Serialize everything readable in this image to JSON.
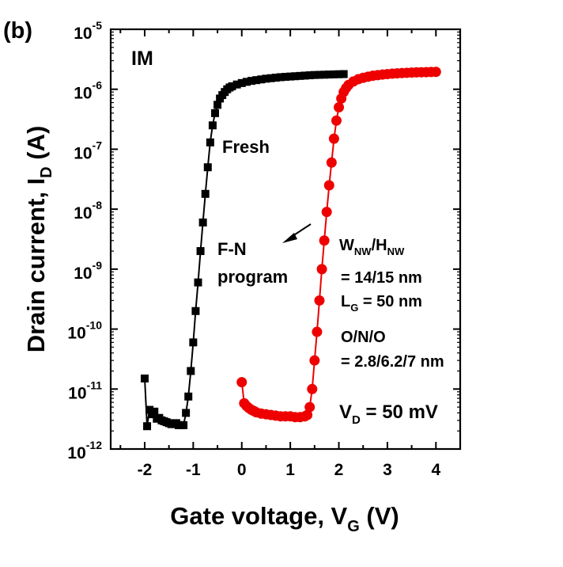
{
  "panel_label": "(b)",
  "chart_data": {
    "type": "scatter",
    "title": "",
    "xlabel": {
      "main": "Gate voltage, V",
      "sub": "G",
      "tail": " (V)"
    },
    "ylabel": {
      "main": "Drain current, I",
      "sub": "D",
      "tail": " (A)"
    },
    "xlim": [
      -2.7,
      4.5
    ],
    "ylim_log10": [
      -12,
      -5
    ],
    "x_ticks": [
      {
        "value": -2,
        "label": "-2"
      },
      {
        "value": -1,
        "label": "-1"
      },
      {
        "value": 0,
        "label": "0"
      },
      {
        "value": 1,
        "label": "1"
      },
      {
        "value": 2,
        "label": "2"
      },
      {
        "value": 3,
        "label": "3"
      },
      {
        "value": 4,
        "label": "4"
      }
    ],
    "y_ticks": [
      {
        "exp": -12,
        "base": "10",
        "sup": "-12"
      },
      {
        "exp": -11,
        "base": "10",
        "sup": "-11"
      },
      {
        "exp": -10,
        "base": "10",
        "sup": "-10"
      },
      {
        "exp": -9,
        "base": "10",
        "sup": "-9"
      },
      {
        "exp": -8,
        "base": "10",
        "sup": "-8"
      },
      {
        "exp": -7,
        "base": "10",
        "sup": "-7"
      },
      {
        "exp": -6,
        "base": "10",
        "sup": "-6"
      },
      {
        "exp": -5,
        "base": "10",
        "sup": "-5"
      }
    ],
    "series": [
      {
        "name": "Fresh",
        "color": "#000000",
        "marker": "square",
        "points": [
          [
            -2.0,
            1.5e-11
          ],
          [
            -1.95,
            2.4e-12
          ],
          [
            -1.9,
            4.5e-12
          ],
          [
            -1.85,
            3.8e-12
          ],
          [
            -1.8,
            4.2e-12
          ],
          [
            -1.75,
            3.2e-12
          ],
          [
            -1.7,
            3.3e-12
          ],
          [
            -1.65,
            3e-12
          ],
          [
            -1.6,
            2.9e-12
          ],
          [
            -1.55,
            2.8e-12
          ],
          [
            -1.5,
            2.7e-12
          ],
          [
            -1.45,
            2.6e-12
          ],
          [
            -1.4,
            2.6e-12
          ],
          [
            -1.35,
            2.7e-12
          ],
          [
            -1.3,
            2.5e-12
          ],
          [
            -1.25,
            2.5e-12
          ],
          [
            -1.2,
            2.5e-12
          ],
          [
            -1.15,
            4e-12
          ],
          [
            -1.1,
            7.5e-12
          ],
          [
            -1.05,
            2e-11
          ],
          [
            -1.0,
            6e-11
          ],
          [
            -0.95,
            2e-10
          ],
          [
            -0.9,
            6e-10
          ],
          [
            -0.85,
            2e-09
          ],
          [
            -0.8,
            6e-09
          ],
          [
            -0.75,
            1.8e-08
          ],
          [
            -0.7,
            5e-08
          ],
          [
            -0.65,
            1.3e-07
          ],
          [
            -0.6,
            2.5e-07
          ],
          [
            -0.55,
            4e-07
          ],
          [
            -0.5,
            5.5e-07
          ],
          [
            -0.45,
            7e-07
          ],
          [
            -0.4,
            8e-07
          ],
          [
            -0.35,
            9e-07
          ],
          [
            -0.3,
            1e-06
          ],
          [
            -0.25,
            1.07e-06
          ],
          [
            -0.2,
            1.12e-06
          ],
          [
            -0.1,
            1.2e-06
          ],
          [
            0.0,
            1.27e-06
          ],
          [
            0.1,
            1.33e-06
          ],
          [
            0.2,
            1.38e-06
          ],
          [
            0.3,
            1.42e-06
          ],
          [
            0.4,
            1.46e-06
          ],
          [
            0.5,
            1.5e-06
          ],
          [
            0.6,
            1.53e-06
          ],
          [
            0.7,
            1.56e-06
          ],
          [
            0.8,
            1.59e-06
          ],
          [
            0.9,
            1.61e-06
          ],
          [
            1.0,
            1.63e-06
          ],
          [
            1.1,
            1.65e-06
          ],
          [
            1.2,
            1.67e-06
          ],
          [
            1.3,
            1.69e-06
          ],
          [
            1.4,
            1.71e-06
          ],
          [
            1.5,
            1.73e-06
          ],
          [
            1.6,
            1.74e-06
          ],
          [
            1.7,
            1.75e-06
          ],
          [
            1.8,
            1.76e-06
          ],
          [
            1.9,
            1.77e-06
          ],
          [
            2.0,
            1.78e-06
          ],
          [
            2.1,
            1.79e-06
          ]
        ]
      },
      {
        "name": "F-N program",
        "color": "#ee0000",
        "marker": "circle",
        "points": [
          [
            0.0,
            1.3e-11
          ],
          [
            0.05,
            5.8e-12
          ],
          [
            0.1,
            5.2e-12
          ],
          [
            0.15,
            4.8e-12
          ],
          [
            0.2,
            4.5e-12
          ],
          [
            0.25,
            4.3e-12
          ],
          [
            0.3,
            4.1e-12
          ],
          [
            0.4,
            3.9e-12
          ],
          [
            0.5,
            3.8e-12
          ],
          [
            0.6,
            3.7e-12
          ],
          [
            0.7,
            3.6e-12
          ],
          [
            0.8,
            3.5e-12
          ],
          [
            0.9,
            3.5e-12
          ],
          [
            1.0,
            3.5e-12
          ],
          [
            1.1,
            3.4e-12
          ],
          [
            1.2,
            3.4e-12
          ],
          [
            1.3,
            3.5e-12
          ],
          [
            1.35,
            3.7e-12
          ],
          [
            1.4,
            5e-12
          ],
          [
            1.45,
            1e-11
          ],
          [
            1.5,
            3e-11
          ],
          [
            1.55,
            9e-11
          ],
          [
            1.6,
            3e-10
          ],
          [
            1.65,
            1e-09
          ],
          [
            1.7,
            3e-09
          ],
          [
            1.75,
            9e-09
          ],
          [
            1.8,
            2.5e-08
          ],
          [
            1.85,
            6e-08
          ],
          [
            1.9,
            1.5e-07
          ],
          [
            1.95,
            3e-07
          ],
          [
            2.0,
            5e-07
          ],
          [
            2.05,
            7e-07
          ],
          [
            2.1,
            9e-07
          ],
          [
            2.15,
            1.05e-06
          ],
          [
            2.2,
            1.18e-06
          ],
          [
            2.3,
            1.35e-06
          ],
          [
            2.4,
            1.47e-06
          ],
          [
            2.5,
            1.55e-06
          ],
          [
            2.6,
            1.62e-06
          ],
          [
            2.7,
            1.68e-06
          ],
          [
            2.8,
            1.72e-06
          ],
          [
            2.9,
            1.76e-06
          ],
          [
            3.0,
            1.79e-06
          ],
          [
            3.1,
            1.82e-06
          ],
          [
            3.2,
            1.84e-06
          ],
          [
            3.3,
            1.86e-06
          ],
          [
            3.4,
            1.88e-06
          ],
          [
            3.5,
            1.9e-06
          ],
          [
            3.6,
            1.91e-06
          ],
          [
            3.7,
            1.92e-06
          ],
          [
            3.8,
            1.93e-06
          ],
          [
            3.9,
            1.94e-06
          ],
          [
            4.0,
            1.95e-06
          ]
        ]
      }
    ],
    "annotations": {
      "im_label": "IM",
      "fresh_label": "Fresh",
      "program_line1": "F-N",
      "program_line2": "program",
      "dims": {
        "w_main": "W",
        "w_sub": "NW",
        "slash": "/",
        "h_main": "H",
        "h_sub": "NW",
        "dims_value": "= 14/15 nm",
        "lg_main": "L",
        "lg_sub": "G",
        "lg_value": " = 50 nm"
      },
      "ono_line1": "O/N/O",
      "ono_line2": "= 2.8/6.2/7 nm",
      "vd": {
        "main": "V",
        "sub": "D",
        "value": " = 50 mV"
      }
    }
  }
}
